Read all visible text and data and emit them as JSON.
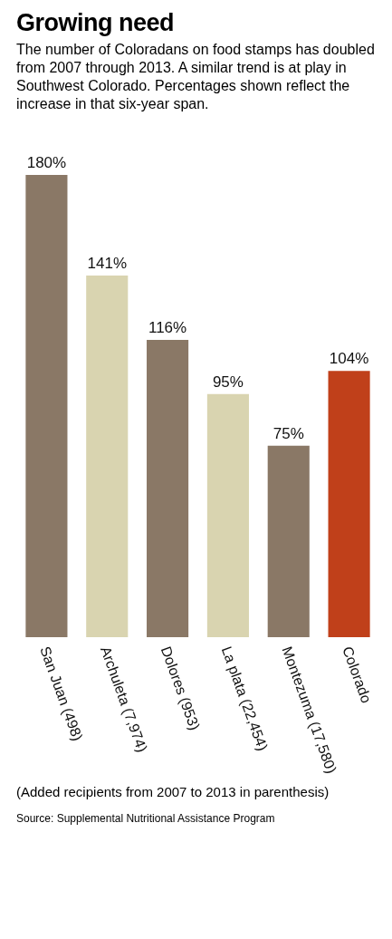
{
  "chart_data": {
    "type": "bar",
    "title": "Growing need",
    "subtitle": "The number of Coloradans on food stamps has doubled from 2007 through 2013. A similar trend is at play in Southwest Colorado. Percentages shown reflect the increase in that six-year span.",
    "categories": [
      "San Juan (498)",
      "Archuleta (7,974)",
      "Dolores (953)",
      "La plata (22,454)",
      "Montezuma (17,580)",
      "Colorado"
    ],
    "values": [
      180,
      141,
      116,
      95,
      75,
      104
    ],
    "colors": [
      "#8a7866",
      "#d9d4b0",
      "#8a7866",
      "#d9d4b0",
      "#8a7866",
      "#c0401a"
    ],
    "value_labels": [
      "180%",
      "141%",
      "116%",
      "95%",
      "75%",
      "104%"
    ],
    "annotations": [
      "(Added recipients from 2007 to 2013 in parenthesis)",
      "Source: Supplemental Nutritional Assistance Program"
    ]
  }
}
